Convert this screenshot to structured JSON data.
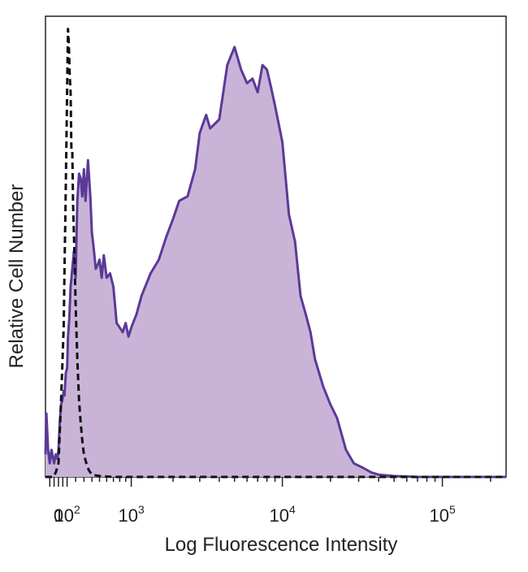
{
  "chart_data": {
    "type": "area",
    "xlabel": "Log Fluorescence Intensity",
    "ylabel": "Relative Cell Number",
    "x_scale": "biexponential",
    "xlim": [
      -150,
      250000
    ],
    "ylim": [
      0,
      100
    ],
    "x_tick_labels": [
      {
        "value": 0,
        "base": "0",
        "sup": ""
      },
      {
        "value": 100,
        "base": "10",
        "sup": "2"
      },
      {
        "value": 1000,
        "base": "10",
        "sup": "3"
      },
      {
        "value": 10000,
        "base": "10",
        "sup": "4"
      },
      {
        "value": 100000,
        "base": "10",
        "sup": "5"
      }
    ],
    "grid": false,
    "series": [
      {
        "style": "filled-solid",
        "color": "#5b3a97",
        "fill": "#c9b4d8",
        "x": [
          -150,
          -140,
          -120,
          -100,
          -80,
          -50,
          -30,
          -10,
          0,
          15,
          30,
          45,
          60,
          70,
          85,
          100,
          110,
          125,
          140,
          160,
          180,
          200,
          220,
          240,
          260,
          280,
          300,
          320,
          350,
          380,
          400,
          420,
          450,
          480,
          500,
          530,
          560,
          600,
          650,
          700,
          750,
          800,
          850,
          900,
          950,
          1000,
          1100,
          1200,
          1400,
          1600,
          1800,
          2000,
          2200,
          2500,
          2800,
          3000,
          3300,
          3500,
          4000,
          4500,
          5000,
          5500,
          6000,
          6500,
          7000,
          7500,
          8000,
          8500,
          9000,
          10000,
          11000,
          12000,
          13000,
          14000,
          15000,
          16000,
          18000,
          20000,
          22000,
          25000,
          28000,
          32000,
          36000,
          40000,
          50000,
          70000,
          100000,
          150000,
          250000
        ],
        "y": [
          5,
          14,
          6,
          3,
          6,
          3,
          5,
          4,
          6,
          12,
          16,
          17,
          19,
          18,
          23,
          24,
          31,
          35,
          42,
          46,
          50,
          44,
          61,
          67,
          66,
          62,
          68,
          61,
          70,
          62,
          54,
          51,
          46,
          47,
          48,
          44,
          49,
          44,
          45,
          42,
          34,
          33,
          32,
          34,
          31,
          33,
          36,
          40,
          45,
          48,
          53,
          57,
          61,
          62,
          68,
          76,
          80,
          77,
          79,
          91,
          95,
          90,
          87,
          88,
          85,
          91,
          90,
          86,
          82,
          74,
          58,
          52,
          40,
          36,
          32,
          26,
          20,
          16,
          13,
          6,
          3,
          2,
          1,
          0.5,
          0.2,
          0,
          0,
          0,
          0
        ]
      },
      {
        "style": "dashed",
        "color": "#111111",
        "x": [
          -150,
          -100,
          -60,
          -30,
          0,
          15,
          30,
          45,
          60,
          70,
          80,
          90,
          95,
          100,
          105,
          110,
          120,
          130,
          140,
          150,
          160,
          170,
          180,
          200,
          220,
          240,
          260,
          280,
          300,
          330,
          360,
          400,
          500,
          700,
          1000,
          10000,
          250000
        ],
        "y": [
          0,
          0,
          0,
          1,
          3,
          10,
          17,
          25,
          33,
          46,
          58,
          72,
          78,
          85,
          93,
          99,
          96,
          89,
          85,
          72,
          72,
          60,
          53,
          38,
          26,
          17,
          12,
          8,
          5,
          3,
          1.5,
          0.5,
          0.2,
          0,
          0,
          0,
          0
        ]
      }
    ]
  }
}
